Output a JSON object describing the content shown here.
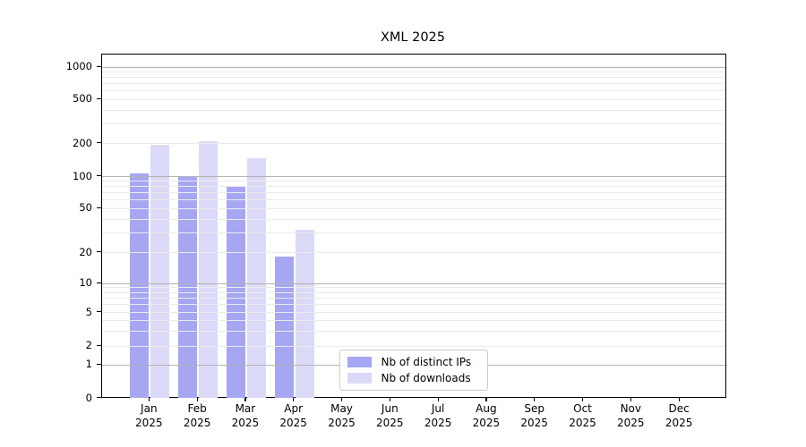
{
  "window": {
    "title": "XML 2025"
  },
  "chart_data": {
    "type": "bar",
    "title": "XML 2025",
    "xlabel": "",
    "ylabel": "",
    "yscale": "log-like (ticks 0,1,2,5,10,20,50,100,200,500,1000)",
    "ylim": [
      0,
      1300
    ],
    "grid": true,
    "categories": [
      "Jan",
      "Feb",
      "Mar",
      "Apr",
      "May",
      "Jun",
      "Jul",
      "Aug",
      "Sep",
      "Oct",
      "Nov",
      "Dec"
    ],
    "year_label": "2025",
    "yticks": [
      0,
      1,
      2,
      5,
      10,
      20,
      50,
      100,
      200,
      500,
      1000
    ],
    "minor_grid_values": [
      3,
      4,
      6,
      7,
      8,
      9,
      30,
      40,
      60,
      70,
      80,
      90,
      300,
      400,
      600,
      700,
      800,
      900
    ],
    "series": [
      {
        "name": "Nb of distinct IPs",
        "color": "#a6a6f2",
        "values": [
          106,
          100,
          80,
          18,
          null,
          null,
          null,
          null,
          null,
          null,
          null,
          null
        ]
      },
      {
        "name": "Nb of downloads",
        "color": "#dadaf8",
        "values": [
          192,
          208,
          146,
          32,
          null,
          null,
          null,
          null,
          null,
          null,
          null,
          null
        ]
      }
    ],
    "legend": {
      "position": "bottom-center",
      "labels": [
        "Nb of distinct IPs",
        "Nb of downloads"
      ]
    },
    "colors": {
      "major_gridline": "#b3b3b3",
      "minor_gridline": "#ebebeb",
      "spine": "#000000",
      "text": "#000000",
      "background": "#ffffff"
    }
  }
}
